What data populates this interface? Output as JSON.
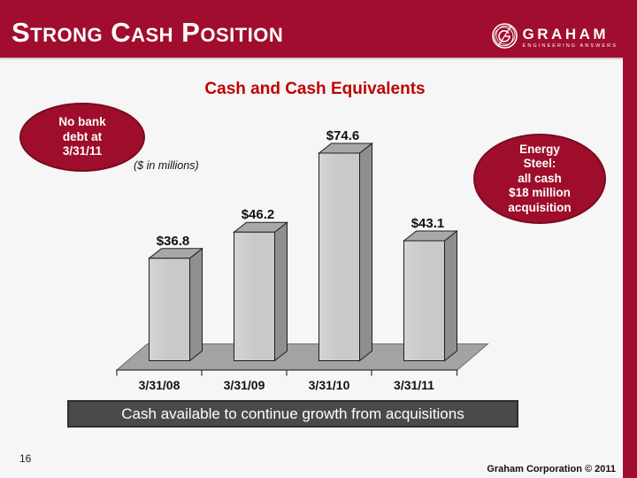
{
  "header": {
    "title": "Strong Cash Position",
    "logo": {
      "name": "GRAHAM",
      "tagline": "ENGINEERING ANSWERS"
    }
  },
  "callouts": {
    "left": {
      "lines": [
        "No bank",
        "debt at",
        "3/31/11"
      ]
    },
    "right": {
      "lines": [
        "Energy",
        "Steel:",
        "all cash",
        "$18 million",
        "acquisition"
      ]
    }
  },
  "chart_data": {
    "type": "bar",
    "style": "3d-column",
    "title": "Cash and Cash Equivalents",
    "units_note": "($ in millions)",
    "categories": [
      "3/31/08",
      "3/31/09",
      "3/31/10",
      "3/31/11"
    ],
    "values": [
      36.8,
      46.2,
      74.6,
      43.1
    ],
    "value_labels": [
      "$36.8",
      "$46.2",
      "$74.6",
      "$43.1"
    ],
    "ylim": [
      0,
      80
    ],
    "grid": false,
    "legend": "none",
    "colors": {
      "bar_front": "#c9c9c9",
      "bar_front_light": "#d4d4d4",
      "bar_top": "#a8a8a8",
      "bar_side": "#8f8f8f",
      "bar_outline": "#1f1f1f",
      "floor": "#a3a3a3",
      "floor_outline": "#6e6e6e",
      "axis": "#333333",
      "title_red": "#c00000"
    }
  },
  "banner": {
    "text": "Cash available to continue growth from acquisitions"
  },
  "footer": {
    "page_number": "16",
    "copyright": "Graham Corporation © 2011"
  },
  "brand_colors": {
    "header_red": "#a10d2e",
    "oval_red": "#9e0e2a",
    "banner_gray": "#4a4a4a"
  }
}
